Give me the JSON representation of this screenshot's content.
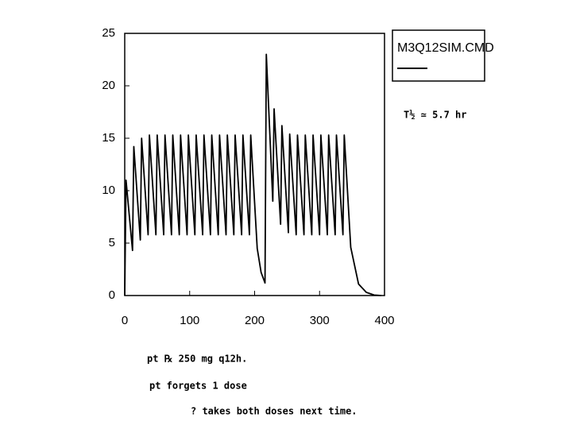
{
  "chart_data": {
    "type": "line",
    "x": [
      0,
      2,
      12,
      14,
      24,
      26,
      36,
      38,
      48,
      50,
      60,
      62,
      72,
      74,
      84,
      86,
      96,
      98,
      108,
      110,
      120,
      122,
      132,
      134,
      144,
      146,
      156,
      158,
      168,
      170,
      180,
      182,
      192,
      194,
      204,
      210,
      216,
      218,
      228,
      230,
      240,
      242,
      252,
      254,
      264,
      266,
      276,
      278,
      288,
      290,
      300,
      302,
      312,
      314,
      324,
      326,
      336,
      338,
      348,
      360,
      372,
      384,
      395
    ],
    "series": [
      {
        "name": "M3Q12SIM.CMD",
        "color": "#000000",
        "values": [
          0,
          11,
          4.3,
          14.2,
          5.3,
          15,
          5.8,
          15.3,
          5.8,
          15.3,
          5.8,
          15.3,
          5.8,
          15.3,
          5.8,
          15.3,
          5.8,
          15.3,
          5.8,
          15.3,
          5.8,
          15.3,
          5.8,
          15.3,
          5.8,
          15.3,
          5.8,
          15.3,
          5.8,
          15.3,
          5.8,
          15.3,
          5.8,
          15.3,
          4.5,
          2.2,
          1.2,
          23,
          9,
          17.8,
          6.8,
          16.2,
          6,
          15.4,
          5.8,
          15.3,
          5.8,
          15.3,
          5.8,
          15.3,
          5.8,
          15.3,
          5.8,
          15.3,
          5.8,
          15.3,
          5.8,
          15.3,
          4.6,
          1.1,
          0.3,
          0.05,
          0
        ]
      }
    ],
    "xlim": [
      0,
      400
    ],
    "xticks": [
      0,
      100,
      200,
      300,
      400
    ],
    "ylim": [
      0,
      25
    ],
    "yticks": [
      0,
      5,
      10,
      15,
      20,
      25
    ],
    "annotations": [
      "T½ ≃ 5.7 hr",
      "pt ℞ 250 mg q12h.",
      "pt forgets 1 dose",
      "? takes both doses next time."
    ]
  }
}
